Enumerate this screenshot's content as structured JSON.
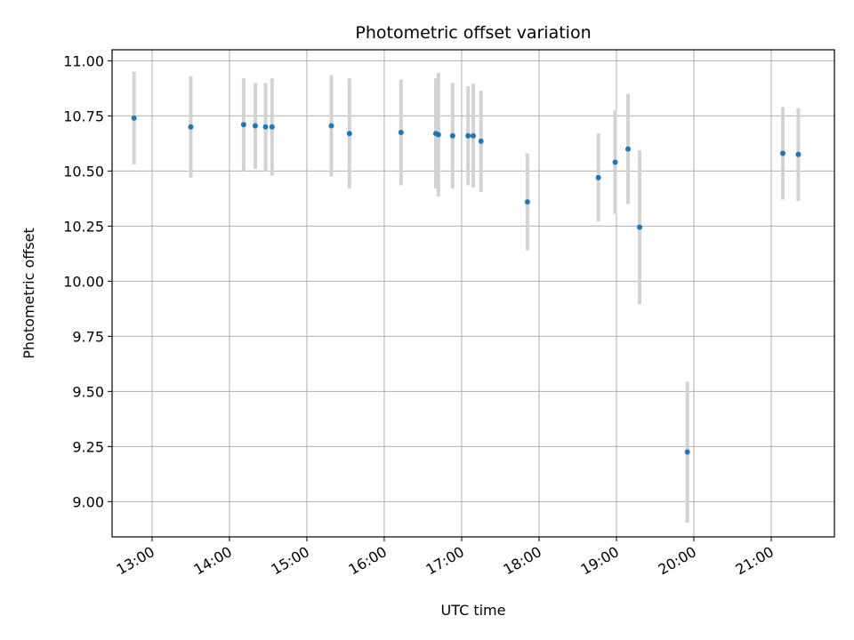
{
  "chart_data": {
    "type": "scatter",
    "title": "Photometric offset variation",
    "xlabel": "UTC time",
    "ylabel": "Photometric offset",
    "grid": true,
    "x_ticks": [
      "13:00",
      "14:00",
      "15:00",
      "16:00",
      "17:00",
      "18:00",
      "19:00",
      "20:00",
      "21:00"
    ],
    "y_ticks": [
      "9.00",
      "9.25",
      "9.50",
      "9.75",
      "10.00",
      "10.25",
      "10.50",
      "10.75",
      "11.00"
    ],
    "xlim": [
      "12:29",
      "21:49"
    ],
    "ylim": [
      8.84,
      11.05
    ],
    "marker_color": "#1f77b4",
    "errorbar_color": "#d3d3d3",
    "points": [
      {
        "time": "12:46",
        "y": 10.74,
        "err": 0.21
      },
      {
        "time": "13:30",
        "y": 10.7,
        "err": 0.23
      },
      {
        "time": "14:11",
        "y": 10.71,
        "err": 0.21
      },
      {
        "time": "14:20",
        "y": 10.705,
        "err": 0.195
      },
      {
        "time": "14:28",
        "y": 10.7,
        "err": 0.2
      },
      {
        "time": "14:33",
        "y": 10.7,
        "err": 0.22
      },
      {
        "time": "15:19",
        "y": 10.705,
        "err": 0.23
      },
      {
        "time": "15:33",
        "y": 10.67,
        "err": 0.25
      },
      {
        "time": "16:13",
        "y": 10.675,
        "err": 0.24
      },
      {
        "time": "16:40",
        "y": 10.67,
        "err": 0.25
      },
      {
        "time": "16:42",
        "y": 10.665,
        "err": 0.28
      },
      {
        "time": "16:53",
        "y": 10.66,
        "err": 0.24
      },
      {
        "time": "17:05",
        "y": 10.66,
        "err": 0.225
      },
      {
        "time": "17:09",
        "y": 10.66,
        "err": 0.235
      },
      {
        "time": "17:15",
        "y": 10.635,
        "err": 0.23
      },
      {
        "time": "17:51",
        "y": 10.36,
        "err": 0.22
      },
      {
        "time": "18:46",
        "y": 10.47,
        "err": 0.2
      },
      {
        "time": "18:59",
        "y": 10.54,
        "err": 0.235
      },
      {
        "time": "19:09",
        "y": 10.6,
        "err": 0.25
      },
      {
        "time": "19:18",
        "y": 10.245,
        "err": 0.35
      },
      {
        "time": "19:55",
        "y": 9.225,
        "err": 0.32
      },
      {
        "time": "21:09",
        "y": 10.58,
        "err": 0.21
      },
      {
        "time": "21:21",
        "y": 10.575,
        "err": 0.21
      }
    ]
  }
}
